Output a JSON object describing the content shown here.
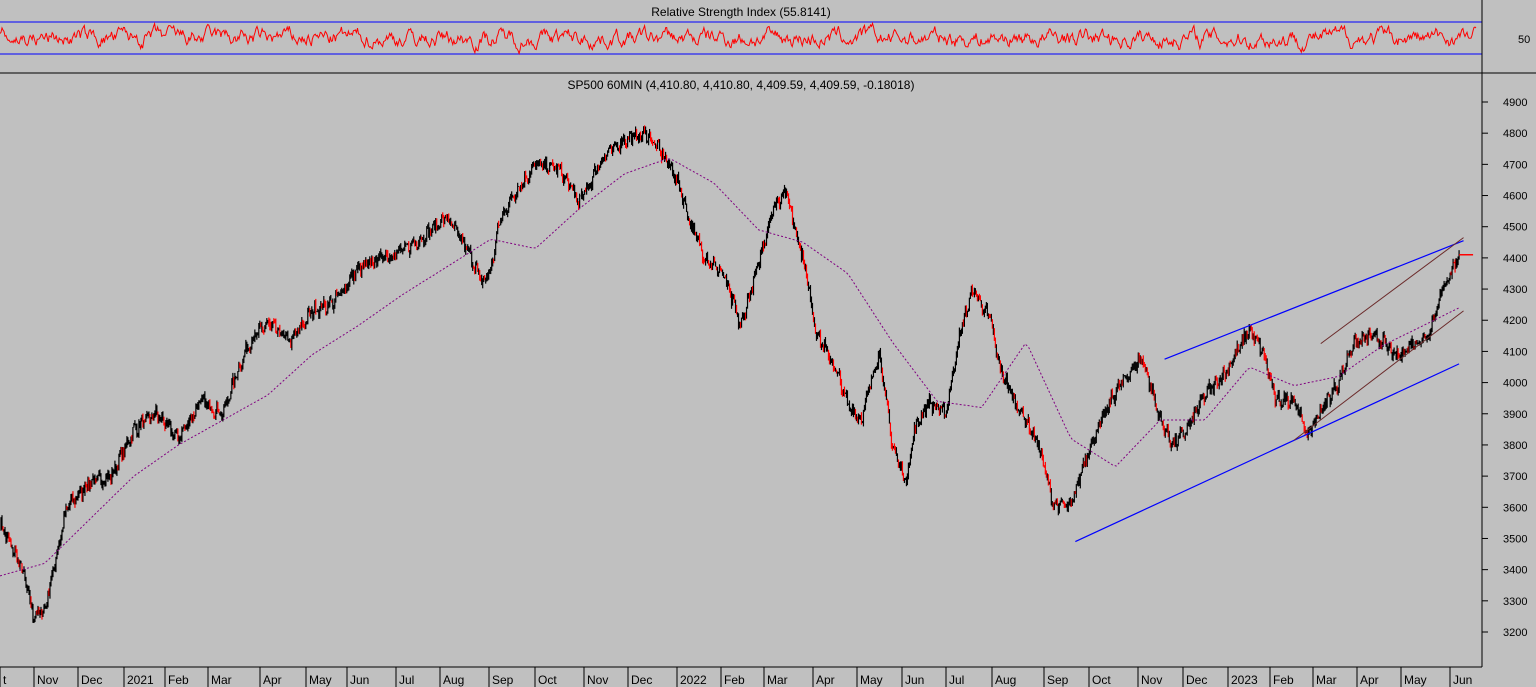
{
  "rsi_panel": {
    "title": "Relative Strength Index (55.8141)",
    "ytick": "50",
    "upper_level": 70,
    "lower_level": 30,
    "line_color": "#ff0000",
    "level_color": "#0000ff"
  },
  "price_panel": {
    "title": "SP500 60MIN (4,410.80, 4,410.80, 4,409.59, 4,409.59, -0.18018)",
    "ylim": [
      3130,
      4950
    ],
    "yticks": [
      3200,
      3300,
      3400,
      3500,
      3600,
      3700,
      3800,
      3900,
      4000,
      4100,
      4200,
      4300,
      4400,
      4500,
      4600,
      4700,
      4800,
      4900
    ],
    "ytick_labels": [
      "3200",
      "3300",
      "3400",
      "3500",
      "3600",
      "3700",
      "3800",
      "3900",
      "4000",
      "4100",
      "4200",
      "4300",
      "4400",
      "4500",
      "4600",
      "4700",
      "4800",
      "4900"
    ],
    "xtick_labels": [
      "t",
      "Nov",
      "Dec",
      "2021",
      "Feb",
      "Mar",
      "Apr",
      "May",
      "Jun",
      "Jul",
      "Aug",
      "Sep",
      "Oct",
      "Nov",
      "Dec",
      "2022",
      "Feb",
      "Mar",
      "Apr",
      "May",
      "Jun",
      "Jul",
      "Aug",
      "Sep",
      "Oct",
      "Nov",
      "Dec",
      "2023",
      "Feb",
      "Mar",
      "Apr",
      "May",
      "Jun"
    ],
    "colors": {
      "background": "#c0c0c0",
      "price": "#000000",
      "down_bars": "#ff0000",
      "moving_average": "#800080",
      "trendlines": "#0000ff",
      "channel": "#6b2a2a"
    }
  },
  "chart_data": {
    "type": "line",
    "title": "SP500 60MIN (4,410.80, 4,410.80, 4,409.59, 4,409.59, -0.18018)",
    "x_unit": "months from Oct 2020",
    "series": [
      {
        "name": "",
        "x": [
          0,
          0.5,
          0.75,
          1.0,
          1.5,
          2.0,
          2.5,
          3.0,
          3.5,
          4.0,
          4.5,
          5.0,
          5.3,
          5.6,
          6.0,
          6.5,
          7.0,
          7.5,
          8.0,
          8.5,
          9.0,
          9.5,
          10.0,
          10.5,
          10.8,
          11.0,
          11.2,
          11.5,
          12.0,
          12.5,
          13.0,
          13.5,
          14.0,
          14.5,
          15.0,
          15.2,
          15.5,
          15.8,
          16.2,
          16.6,
          17.0,
          17.3,
          17.6,
          18.0,
          18.3,
          18.7,
          19.0,
          19.3,
          19.7,
          20.0,
          20.3,
          20.5,
          20.8,
          21.2,
          21.5,
          21.8,
          22.2,
          22.4,
          22.7,
          23.0,
          23.3,
          23.6,
          24.0,
          24.3,
          24.6,
          25.0,
          25.3,
          25.6,
          26.0,
          26.3,
          26.6,
          27.0,
          27.5,
          28.0,
          28.3,
          28.6,
          29.0,
          29.3,
          29.6,
          30.0,
          30.3,
          30.7,
          31.0,
          31.3,
          31.6,
          32.0,
          32.3,
          32.5,
          32.7
        ],
        "y": [
          3550,
          3400,
          3250,
          3270,
          3600,
          3680,
          3700,
          3850,
          3900,
          3820,
          3940,
          3900,
          4030,
          4130,
          4190,
          4130,
          4230,
          4260,
          4360,
          4400,
          4420,
          4470,
          4530,
          4420,
          4320,
          4360,
          4520,
          4600,
          4700,
          4690,
          4580,
          4720,
          4780,
          4800,
          4700,
          4640,
          4500,
          4400,
          4350,
          4180,
          4380,
          4550,
          4620,
          4400,
          4160,
          4050,
          3930,
          3880,
          4100,
          3800,
          3680,
          3850,
          3940,
          3900,
          4150,
          4300,
          4200,
          4050,
          3950,
          3880,
          3790,
          3610,
          3600,
          3750,
          3850,
          3970,
          4030,
          4080,
          3880,
          3800,
          3850,
          3960,
          4040,
          4170,
          4100,
          3940,
          3950,
          3830,
          3910,
          4000,
          4120,
          4150,
          4130,
          4080,
          4120,
          4150,
          4290,
          4350,
          4410
        ]
      },
      {
        "name": "",
        "x": [
          0,
          1,
          2,
          3,
          4,
          5,
          6,
          7,
          8,
          9,
          10,
          11,
          12,
          13,
          14,
          15,
          16,
          17,
          18,
          19,
          20,
          21,
          22,
          23,
          24,
          25,
          26,
          27,
          28,
          29,
          30,
          31,
          32,
          32.7
        ],
        "y": [
          3380,
          3420,
          3560,
          3700,
          3800,
          3880,
          3960,
          4090,
          4180,
          4280,
          4370,
          4460,
          4430,
          4560,
          4670,
          4720,
          4640,
          4490,
          4450,
          4350,
          4130,
          3940,
          3920,
          4130,
          3820,
          3730,
          3880,
          3880,
          4050,
          3990,
          4020,
          4120,
          4190,
          4240
        ]
      }
    ],
    "trendlines": [
      {
        "x": [
          24.1,
          32.7
        ],
        "y": [
          3490,
          4060
        ]
      },
      {
        "x": [
          26.1,
          32.8
        ],
        "y": [
          4075,
          4455
        ]
      },
      {
        "x": [
          29.0,
          32.8
        ],
        "y": [
          3815,
          4230
        ]
      },
      {
        "x": [
          29.6,
          32.8
        ],
        "y": [
          4125,
          4465
        ]
      }
    ],
    "rsi_levels": [
      70,
      30
    ],
    "ylim": [
      3130,
      4950
    ],
    "xlabel": "",
    "ylabel": "",
    "grid": false
  }
}
